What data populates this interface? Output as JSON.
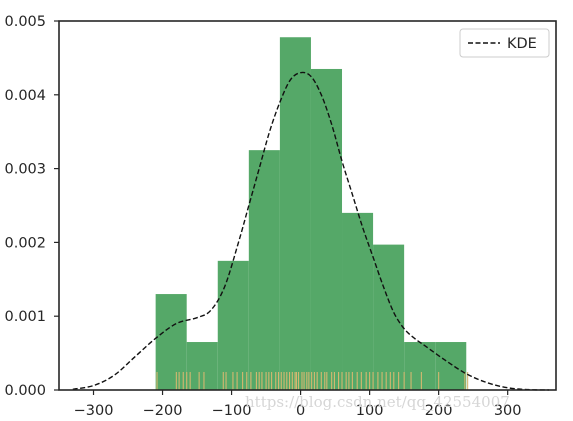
{
  "chart_data": {
    "type": "histogram",
    "xlim": [
      -350,
      370
    ],
    "ylim": [
      0,
      0.005
    ],
    "x_ticks": [
      -300,
      -200,
      -100,
      0,
      100,
      200,
      300
    ],
    "y_ticks": [
      0.0,
      0.001,
      0.002,
      0.003,
      0.004,
      0.005
    ],
    "x_tick_labels": [
      "−300",
      "−200",
      "−100",
      "0",
      "100",
      "200",
      "300"
    ],
    "y_tick_labels": [
      "0.000",
      "0.001",
      "0.002",
      "0.003",
      "0.004",
      "0.005"
    ],
    "grid": false,
    "legend_position": "top-right",
    "bar_color": "#55a868",
    "kde_color": "#111111",
    "rug_color": "#d4b870",
    "histogram": {
      "bin_edges": [
        -210,
        -165,
        -120,
        -75,
        -30,
        15,
        60,
        105,
        150,
        195,
        240
      ],
      "density": [
        0.0013,
        0.00065,
        0.00175,
        0.00325,
        0.00478,
        0.00435,
        0.0024,
        0.00197,
        0.00065,
        0.00065
      ]
    },
    "kde": {
      "name": "KDE",
      "x": [
        -330,
        -300,
        -270,
        -240,
        -210,
        -180,
        -150,
        -130,
        -110,
        -90,
        -75,
        -60,
        -45,
        -30,
        -15,
        0,
        15,
        30,
        45,
        60,
        75,
        90,
        105,
        120,
        135,
        150,
        165,
        180,
        210,
        240,
        270,
        300,
        330,
        360
      ],
      "y": [
        1e-05,
        6e-05,
        0.0002,
        0.00045,
        0.0007,
        0.0009,
        0.00098,
        0.00108,
        0.0014,
        0.002,
        0.0025,
        0.003,
        0.0035,
        0.0039,
        0.0042,
        0.0043,
        0.00425,
        0.004,
        0.0036,
        0.0031,
        0.00265,
        0.0022,
        0.0018,
        0.0014,
        0.00105,
        0.00083,
        0.0007,
        0.0006,
        0.0004,
        0.00022,
        0.0001,
        3e-05,
        5e-06,
        0.0
      ]
    },
    "rug": [
      -208,
      -180,
      -176,
      -170,
      -165,
      -160,
      -147,
      -140,
      -112,
      -108,
      -98,
      -92,
      -84,
      -78,
      -72,
      -64,
      -60,
      -56,
      -50,
      -46,
      -42,
      -36,
      -32,
      -28,
      -24,
      -20,
      -16,
      -12,
      -8,
      -6,
      -3,
      2,
      5,
      9,
      12,
      16,
      20,
      24,
      30,
      35,
      38,
      45,
      49,
      55,
      60,
      66,
      70,
      75,
      82,
      88,
      95,
      100,
      105,
      112,
      118,
      124,
      130,
      135,
      142,
      150,
      160,
      175,
      200,
      238,
      242
    ]
  },
  "watermark": "https://blog.csdn.net/qq_42554007"
}
